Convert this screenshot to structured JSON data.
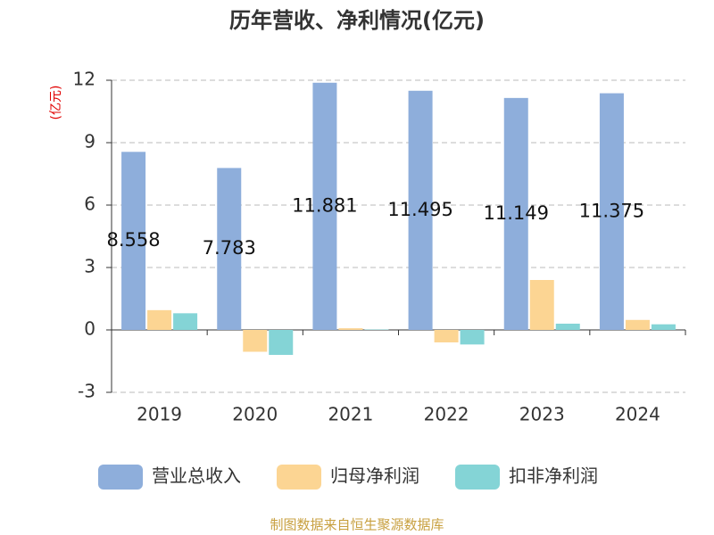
{
  "chart_data": {
    "type": "bar",
    "title": "历年营收、净利情况(亿元)",
    "ylabel": "(亿元)",
    "categories": [
      "2019",
      "2020",
      "2021",
      "2022",
      "2023",
      "2024"
    ],
    "series": [
      {
        "name": "营业总收入",
        "color": "#8eaedb",
        "values": [
          8.558,
          7.783,
          11.881,
          11.495,
          11.149,
          11.375
        ],
        "show_labels": true
      },
      {
        "name": "归母净利润",
        "color": "#fcd593",
        "values": [
          0.95,
          -1.05,
          0.08,
          -0.6,
          2.4,
          0.48
        ],
        "show_labels": false
      },
      {
        "name": "扣非净利润",
        "color": "#84d4d6",
        "values": [
          0.8,
          -1.2,
          0.02,
          -0.7,
          0.3,
          0.27
        ],
        "show_labels": false
      }
    ],
    "ylim": [
      -3,
      12
    ],
    "yticks": [
      -3,
      0,
      3,
      6,
      9,
      12
    ],
    "grid": true,
    "legend": "bottom",
    "source": "制图数据来自恒生聚源数据库"
  }
}
